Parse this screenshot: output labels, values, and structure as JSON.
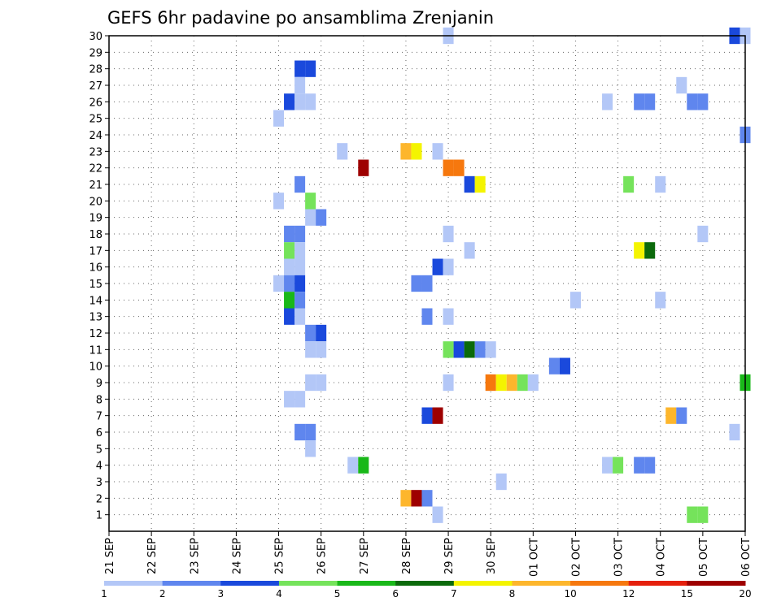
{
  "title": "GEFS 6hr padavine po ansamblima Zrenjanin",
  "chart_data": {
    "type": "heatmap",
    "title": "GEFS 6hr padavine po ansamblima Zrenjanin",
    "xlabel": "",
    "ylabel": "",
    "x_ticks": [
      "21 SEP",
      "22 SEP",
      "23 SEP",
      "24 SEP",
      "25 SEP",
      "26 SEP",
      "27 SEP",
      "28 SEP",
      "29 SEP",
      "30 SEP",
      "01 OCT",
      "02 OCT",
      "03 OCT",
      "04 OCT",
      "05 OCT",
      "06 OCT"
    ],
    "y_ticks": [
      1,
      2,
      3,
      4,
      5,
      6,
      7,
      8,
      9,
      10,
      11,
      12,
      13,
      14,
      15,
      16,
      17,
      18,
      19,
      20,
      21,
      22,
      23,
      24,
      25,
      26,
      27,
      28,
      29,
      30
    ],
    "xlim_hours": [
      0,
      360
    ],
    "ylim": [
      0,
      30
    ],
    "grid": true,
    "x_unit": "hours after 21 SEP 00Z (6-hour steps)",
    "legend_position": "bottom",
    "colorbar": {
      "labels": [
        "1",
        "2",
        "3",
        "4",
        "5",
        "6",
        "7",
        "8",
        "10",
        "12",
        "15",
        "20"
      ],
      "colors": [
        "#b3c7f7",
        "#5f86ee",
        "#1a49dc",
        "#75e35b",
        "#19b819",
        "#0b6a0b",
        "#f4f400",
        "#fdb62c",
        "#f6780e",
        "#e5200c",
        "#9e0000"
      ]
    },
    "cells": [
      {
        "member": 30,
        "hour": 192,
        "value": 1.5
      },
      {
        "member": 30,
        "hour": 354,
        "value": 3.5
      },
      {
        "member": 30,
        "hour": 360,
        "value": 1.5
      },
      {
        "member": 28,
        "hour": 108,
        "value": 3.5
      },
      {
        "member": 28,
        "hour": 114,
        "value": 3.5
      },
      {
        "member": 27,
        "hour": 108,
        "value": 1.5
      },
      {
        "member": 27,
        "hour": 324,
        "value": 1.5
      },
      {
        "member": 26,
        "hour": 102,
        "value": 3.5
      },
      {
        "member": 26,
        "hour": 108,
        "value": 1.5
      },
      {
        "member": 26,
        "hour": 114,
        "value": 1.5
      },
      {
        "member": 26,
        "hour": 282,
        "value": 1.5
      },
      {
        "member": 26,
        "hour": 300,
        "value": 2.5
      },
      {
        "member": 26,
        "hour": 306,
        "value": 2.5
      },
      {
        "member": 26,
        "hour": 330,
        "value": 2.5
      },
      {
        "member": 26,
        "hour": 336,
        "value": 2.5
      },
      {
        "member": 25,
        "hour": 96,
        "value": 1.5
      },
      {
        "member": 24,
        "hour": 360,
        "value": 2.5
      },
      {
        "member": 23,
        "hour": 132,
        "value": 1.5
      },
      {
        "member": 23,
        "hour": 168,
        "value": 9
      },
      {
        "member": 23,
        "hour": 174,
        "value": 7.5
      },
      {
        "member": 23,
        "hour": 186,
        "value": 1.5
      },
      {
        "member": 22,
        "hour": 144,
        "value": 21
      },
      {
        "member": 22,
        "hour": 192,
        "value": 11
      },
      {
        "member": 22,
        "hour": 198,
        "value": 11
      },
      {
        "member": 21,
        "hour": 108,
        "value": 2.5
      },
      {
        "member": 21,
        "hour": 204,
        "value": 3.5
      },
      {
        "member": 21,
        "hour": 210,
        "value": 7.5
      },
      {
        "member": 21,
        "hour": 294,
        "value": 4.5
      },
      {
        "member": 21,
        "hour": 312,
        "value": 1.5
      },
      {
        "member": 20,
        "hour": 96,
        "value": 1.5
      },
      {
        "member": 20,
        "hour": 114,
        "value": 4.5
      },
      {
        "member": 19,
        "hour": 114,
        "value": 1.5
      },
      {
        "member": 19,
        "hour": 120,
        "value": 2.5
      },
      {
        "member": 18,
        "hour": 102,
        "value": 2.5
      },
      {
        "member": 18,
        "hour": 108,
        "value": 2.5
      },
      {
        "member": 18,
        "hour": 192,
        "value": 1.5
      },
      {
        "member": 18,
        "hour": 336,
        "value": 1.5
      },
      {
        "member": 17,
        "hour": 102,
        "value": 4.5
      },
      {
        "member": 17,
        "hour": 108,
        "value": 1.5
      },
      {
        "member": 17,
        "hour": 204,
        "value": 1.5
      },
      {
        "member": 17,
        "hour": 300,
        "value": 7.5
      },
      {
        "member": 17,
        "hour": 306,
        "value": 6.5
      },
      {
        "member": 16,
        "hour": 102,
        "value": 1.5
      },
      {
        "member": 16,
        "hour": 108,
        "value": 1.5
      },
      {
        "member": 16,
        "hour": 186,
        "value": 3.5
      },
      {
        "member": 16,
        "hour": 192,
        "value": 1.5
      },
      {
        "member": 15,
        "hour": 96,
        "value": 1.5
      },
      {
        "member": 15,
        "hour": 102,
        "value": 2.5
      },
      {
        "member": 15,
        "hour": 108,
        "value": 3.5
      },
      {
        "member": 15,
        "hour": 174,
        "value": 2.5
      },
      {
        "member": 15,
        "hour": 180,
        "value": 2.5
      },
      {
        "member": 14,
        "hour": 102,
        "value": 5.5
      },
      {
        "member": 14,
        "hour": 108,
        "value": 2.5
      },
      {
        "member": 14,
        "hour": 264,
        "value": 1.5
      },
      {
        "member": 14,
        "hour": 312,
        "value": 1.5
      },
      {
        "member": 13,
        "hour": 102,
        "value": 3.5
      },
      {
        "member": 13,
        "hour": 108,
        "value": 1.5
      },
      {
        "member": 13,
        "hour": 180,
        "value": 2.5
      },
      {
        "member": 13,
        "hour": 192,
        "value": 1.5
      },
      {
        "member": 12,
        "hour": 114,
        "value": 2.5
      },
      {
        "member": 12,
        "hour": 120,
        "value": 3.5
      },
      {
        "member": 11,
        "hour": 114,
        "value": 1.5
      },
      {
        "member": 11,
        "hour": 120,
        "value": 1.5
      },
      {
        "member": 11,
        "hour": 192,
        "value": 4.5
      },
      {
        "member": 11,
        "hour": 198,
        "value": 3.5
      },
      {
        "member": 11,
        "hour": 204,
        "value": 6.5
      },
      {
        "member": 11,
        "hour": 210,
        "value": 2.5
      },
      {
        "member": 11,
        "hour": 216,
        "value": 1.5
      },
      {
        "member": 10,
        "hour": 252,
        "value": 2.5
      },
      {
        "member": 10,
        "hour": 258,
        "value": 3.5
      },
      {
        "member": 9,
        "hour": 114,
        "value": 1.5
      },
      {
        "member": 9,
        "hour": 120,
        "value": 1.5
      },
      {
        "member": 9,
        "hour": 192,
        "value": 1.5
      },
      {
        "member": 9,
        "hour": 216,
        "value": 11
      },
      {
        "member": 9,
        "hour": 222,
        "value": 7.5
      },
      {
        "member": 9,
        "hour": 228,
        "value": 9
      },
      {
        "member": 9,
        "hour": 234,
        "value": 4.5
      },
      {
        "member": 9,
        "hour": 240,
        "value": 1.5
      },
      {
        "member": 9,
        "hour": 360,
        "value": 5.5
      },
      {
        "member": 8,
        "hour": 102,
        "value": 1.5
      },
      {
        "member": 8,
        "hour": 108,
        "value": 1.5
      },
      {
        "member": 7,
        "hour": 180,
        "value": 3.5
      },
      {
        "member": 7,
        "hour": 186,
        "value": 17
      },
      {
        "member": 7,
        "hour": 318,
        "value": 9
      },
      {
        "member": 7,
        "hour": 324,
        "value": 2.5
      },
      {
        "member": 6,
        "hour": 108,
        "value": 2.5
      },
      {
        "member": 6,
        "hour": 114,
        "value": 2.5
      },
      {
        "member": 6,
        "hour": 354,
        "value": 1.5
      },
      {
        "member": 5,
        "hour": 114,
        "value": 1.5
      },
      {
        "member": 4,
        "hour": 138,
        "value": 1.5
      },
      {
        "member": 4,
        "hour": 144,
        "value": 5.5
      },
      {
        "member": 4,
        "hour": 282,
        "value": 1.5
      },
      {
        "member": 4,
        "hour": 288,
        "value": 4.5
      },
      {
        "member": 4,
        "hour": 300,
        "value": 2.5
      },
      {
        "member": 4,
        "hour": 306,
        "value": 2.5
      },
      {
        "member": 3,
        "hour": 222,
        "value": 1.5
      },
      {
        "member": 2,
        "hour": 168,
        "value": 9
      },
      {
        "member": 2,
        "hour": 174,
        "value": 21
      },
      {
        "member": 2,
        "hour": 180,
        "value": 2.5
      },
      {
        "member": 1,
        "hour": 186,
        "value": 1.5
      },
      {
        "member": 1,
        "hour": 330,
        "value": 4.5
      },
      {
        "member": 1,
        "hour": 336,
        "value": 4.5
      }
    ]
  }
}
